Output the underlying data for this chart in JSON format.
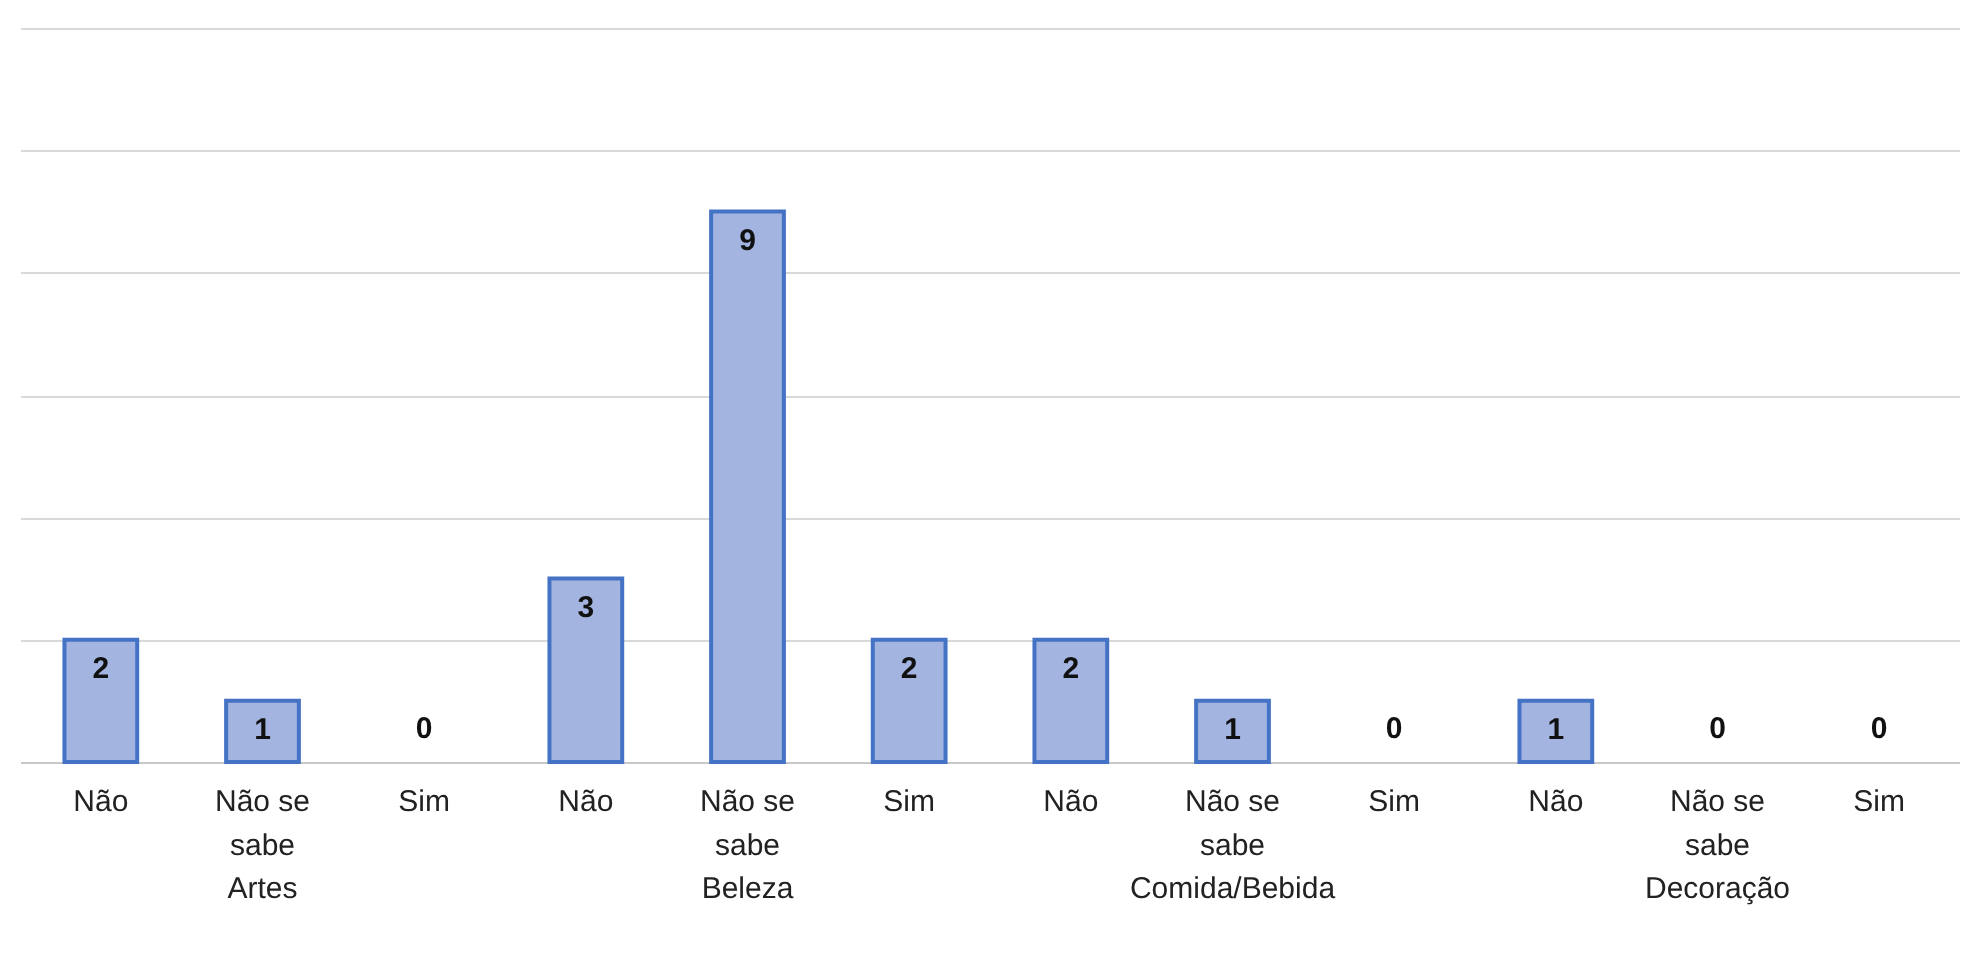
{
  "chart_data": {
    "type": "bar",
    "categories": [
      "Não",
      "Não se sabe",
      "Sim",
      "Não",
      "Não se sabe",
      "Sim",
      "Não",
      "Não se sabe",
      "Sim",
      "Não",
      "Não se sabe",
      "Sim"
    ],
    "values": [
      2,
      1,
      0,
      3,
      9,
      2,
      2,
      1,
      0,
      1,
      0,
      0
    ],
    "color": "#a3b4e0",
    "ylim": [
      0,
      12
    ],
    "yticks": [
      {
        "value": 0,
        "label": null
      },
      {
        "value": 2,
        "label": null
      },
      {
        "value": 4,
        "label": null
      },
      {
        "value": 6,
        "label": null
      },
      {
        "value": 8,
        "label": null
      },
      {
        "value": 10,
        "label": null
      },
      {
        "value": 12,
        "label": null
      }
    ],
    "grid": "y",
    "data_labels": true,
    "annotations": [
      "Artes",
      "Beleza",
      "Comida/Bebida",
      "Decoração"
    ]
  }
}
